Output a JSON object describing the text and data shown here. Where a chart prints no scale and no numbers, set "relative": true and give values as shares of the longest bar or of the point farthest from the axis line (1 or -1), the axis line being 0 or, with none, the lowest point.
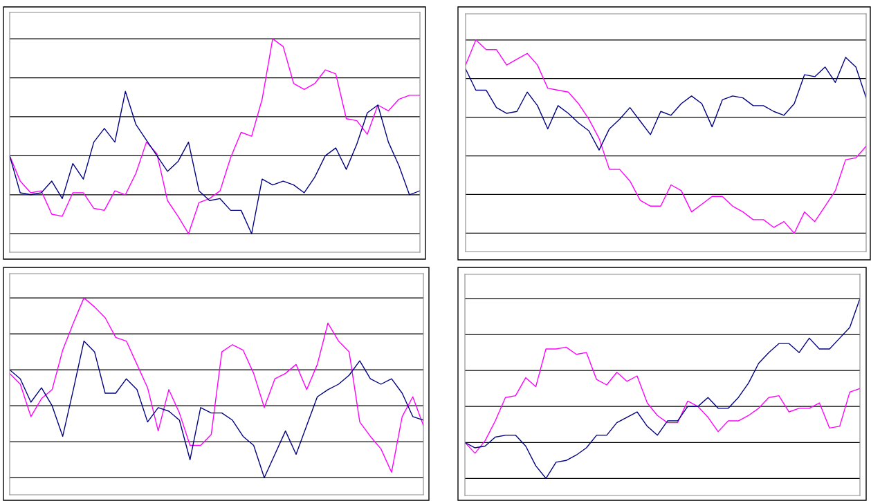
{
  "chart_data": [
    {
      "type": "line",
      "relative": true,
      "grid": "y",
      "marker": "none",
      "line_style": "solid",
      "categories": [
        null,
        null,
        null,
        null,
        null,
        null,
        null,
        null,
        null,
        null,
        null,
        null,
        null,
        null,
        null,
        null,
        null,
        null,
        null,
        null,
        null,
        null,
        null,
        null,
        null,
        null,
        null,
        null,
        null,
        null,
        null,
        null,
        null,
        null,
        null,
        null,
        null,
        null,
        null,
        null
      ],
      "series": [
        {
          "color": "#ff00ff",
          "values": [
            0.4,
            0.27,
            0.21,
            0.22,
            0.1,
            0.09,
            0.21,
            0.21,
            0.13,
            0.12,
            0.22,
            0.2,
            0.31,
            0.47,
            0.41,
            0.17,
            0.09,
            0,
            0.16,
            0.18,
            0.22,
            0.39,
            0.52,
            0.5,
            0.69,
            1.0,
            0.96,
            0.77,
            0.74,
            0.77,
            0.84,
            0.82,
            0.59,
            0.58,
            0.51,
            0.66,
            0.63,
            0.69,
            0.71,
            0.71
          ]
        },
        {
          "color": "#000080",
          "values": [
            0.4,
            0.21,
            0.2,
            0.21,
            0.27,
            0.18,
            0.36,
            0.28,
            0.47,
            0.54,
            0.47,
            0.73,
            0.56,
            0.48,
            0.4,
            0.32,
            0.37,
            0.47,
            0.22,
            0.17,
            0.18,
            0.12,
            0.12,
            0,
            0.28,
            0.25,
            0.27,
            0.25,
            0.21,
            0.29,
            0.4,
            0.44,
            0.33,
            0.46,
            0.62,
            0.66,
            0.47,
            0.35,
            0.2,
            0.22
          ]
        }
      ]
    },
    {
      "type": "line",
      "relative": true,
      "grid": "y",
      "marker": "none",
      "line_style": "solid",
      "categories": [
        null,
        null,
        null,
        null,
        null,
        null,
        null,
        null,
        null,
        null,
        null,
        null,
        null,
        null,
        null,
        null,
        null,
        null,
        null,
        null,
        null,
        null,
        null,
        null,
        null,
        null,
        null,
        null,
        null,
        null,
        null,
        null,
        null,
        null,
        null,
        null,
        null,
        null,
        null,
        null
      ],
      "series": [
        {
          "color": "#ff00ff",
          "values": [
            0.87,
            1.0,
            0.95,
            0.95,
            0.87,
            0.9,
            0.93,
            0.87,
            0.75,
            0.74,
            0.73,
            0.67,
            0.59,
            0.49,
            0.33,
            0.33,
            0.27,
            0.17,
            0.14,
            0.14,
            0.25,
            0.22,
            0.11,
            0.15,
            0.19,
            0.19,
            0.14,
            0.11,
            0.07,
            0.07,
            0.03,
            0.06,
            0,
            0.11,
            0.06,
            0.14,
            0.22,
            0.38,
            0.39,
            0.45
          ]
        },
        {
          "color": "#000080",
          "values": [
            0.85,
            0.74,
            0.74,
            0.65,
            0.62,
            0.63,
            0.73,
            0.66,
            0.54,
            0.66,
            0.62,
            0.57,
            0.53,
            0.43,
            0.54,
            0.59,
            0.65,
            0.58,
            0.51,
            0.63,
            0.61,
            0.67,
            0.71,
            0.67,
            0.55,
            0.69,
            0.71,
            0.7,
            0.66,
            0.66,
            0.63,
            0.61,
            0.67,
            0.82,
            0.81,
            0.86,
            0.78,
            0.91,
            0.86,
            0.7
          ]
        }
      ]
    },
    {
      "type": "line",
      "relative": true,
      "grid": "y",
      "marker": "none",
      "line_style": "solid",
      "categories": [
        null,
        null,
        null,
        null,
        null,
        null,
        null,
        null,
        null,
        null,
        null,
        null,
        null,
        null,
        null,
        null,
        null,
        null,
        null,
        null,
        null,
        null,
        null,
        null,
        null,
        null,
        null,
        null,
        null,
        null,
        null,
        null,
        null,
        null,
        null,
        null,
        null,
        null,
        null,
        null
      ],
      "series": [
        {
          "color": "#ff00ff",
          "values": [
            0.58,
            0.52,
            0.34,
            0.44,
            0.49,
            0.71,
            0.86,
            1.0,
            0.95,
            0.89,
            0.78,
            0.76,
            0.63,
            0.5,
            0.26,
            0.49,
            0.36,
            0.18,
            0.18,
            0.24,
            0.7,
            0.74,
            0.71,
            0.58,
            0.39,
            0.55,
            0.58,
            0.63,
            0.49,
            0.63,
            0.86,
            0.76,
            0.7,
            0.31,
            0.23,
            0.16,
            0.03,
            0.34,
            0.45,
            0.29
          ]
        },
        {
          "color": "#000080",
          "values": [
            0.6,
            0.55,
            0.42,
            0.5,
            0.4,
            0.23,
            0.49,
            0.76,
            0.7,
            0.47,
            0.47,
            0.55,
            0.49,
            0.31,
            0.39,
            0.37,
            0.32,
            0.1,
            0.39,
            0.36,
            0.36,
            0.32,
            0.23,
            0.18,
            0,
            0.13,
            0.26,
            0.13,
            0.29,
            0.45,
            0.49,
            0.52,
            0.57,
            0.65,
            0.55,
            0.52,
            0.55,
            0.47,
            0.34,
            0.32
          ]
        }
      ]
    },
    {
      "type": "line",
      "relative": true,
      "grid": "y",
      "marker": "none",
      "line_style": "solid",
      "categories": [
        null,
        null,
        null,
        null,
        null,
        null,
        null,
        null,
        null,
        null,
        null,
        null,
        null,
        null,
        null,
        null,
        null,
        null,
        null,
        null,
        null,
        null,
        null,
        null,
        null,
        null,
        null,
        null,
        null,
        null,
        null,
        null,
        null,
        null,
        null,
        null,
        null,
        null,
        null,
        null
      ],
      "series": [
        {
          "color": "#ff00ff",
          "values": [
            0.2,
            0.14,
            0.21,
            0.32,
            0.45,
            0.46,
            0.56,
            0.51,
            0.72,
            0.72,
            0.73,
            0.69,
            0.7,
            0.55,
            0.52,
            0.59,
            0.54,
            0.57,
            0.42,
            0.35,
            0.31,
            0.31,
            0.43,
            0.4,
            0.34,
            0.26,
            0.32,
            0.32,
            0.35,
            0.39,
            0.45,
            0.46,
            0.37,
            0.39,
            0.39,
            0.42,
            0.28,
            0.29,
            0.48,
            0.5
          ]
        },
        {
          "color": "#000080",
          "values": [
            0.2,
            0.17,
            0.18,
            0.23,
            0.24,
            0.24,
            0.18,
            0.07,
            0,
            0.09,
            0.1,
            0.13,
            0.17,
            0.24,
            0.24,
            0.31,
            0.34,
            0.37,
            0.29,
            0.24,
            0.32,
            0.32,
            0.4,
            0.4,
            0.45,
            0.39,
            0.39,
            0.45,
            0.53,
            0.64,
            0.7,
            0.75,
            0.75,
            0.7,
            0.78,
            0.72,
            0.72,
            0.78,
            0.84,
            1.0
          ]
        }
      ]
    }
  ]
}
